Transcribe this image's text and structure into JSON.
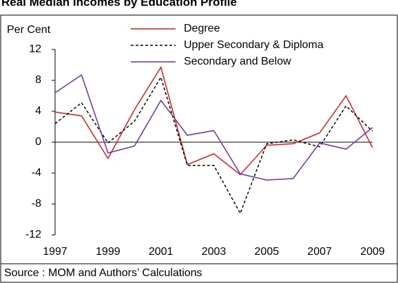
{
  "chart_data": {
    "type": "line",
    "title": "Real Median Incomes by Education Profile",
    "y_label": "Per Cent",
    "source": "Source :  MOM and Authors’ Calculations",
    "x": [
      1997,
      1998,
      1999,
      2000,
      2001,
      2002,
      2003,
      2004,
      2005,
      2006,
      2007,
      2008,
      2009
    ],
    "xlim": [
      1997,
      2009
    ],
    "xticks": [
      1997,
      1999,
      2001,
      2003,
      2005,
      2007,
      2009
    ],
    "ylim": [
      -12,
      12
    ],
    "yticks": [
      -12,
      -8,
      -4,
      0,
      4,
      8,
      12
    ],
    "series": [
      {
        "name": "Degree",
        "color": "#e31a1c",
        "dash": false,
        "values": [
          3.9,
          3.4,
          -2.1,
          4.2,
          9.7,
          -2.9,
          -1.5,
          -4.2,
          -0.4,
          -0.2,
          1.2,
          6.0,
          -0.7
        ]
      },
      {
        "name": "Upper Secondary & Diploma",
        "color": "#000000",
        "dash": true,
        "values": [
          2.4,
          5.1,
          -0.1,
          2.7,
          8.4,
          -3.0,
          -3.0,
          -9.2,
          -0.2,
          0.3,
          -0.6,
          4.7,
          1.4
        ]
      },
      {
        "name": "Secondary and Below",
        "color": "#7030a0",
        "dash": false,
        "values": [
          6.4,
          8.7,
          -1.4,
          -0.5,
          5.4,
          0.9,
          1.5,
          -4.1,
          -4.9,
          -4.7,
          -0.1,
          -0.9,
          1.9
        ]
      }
    ]
  }
}
